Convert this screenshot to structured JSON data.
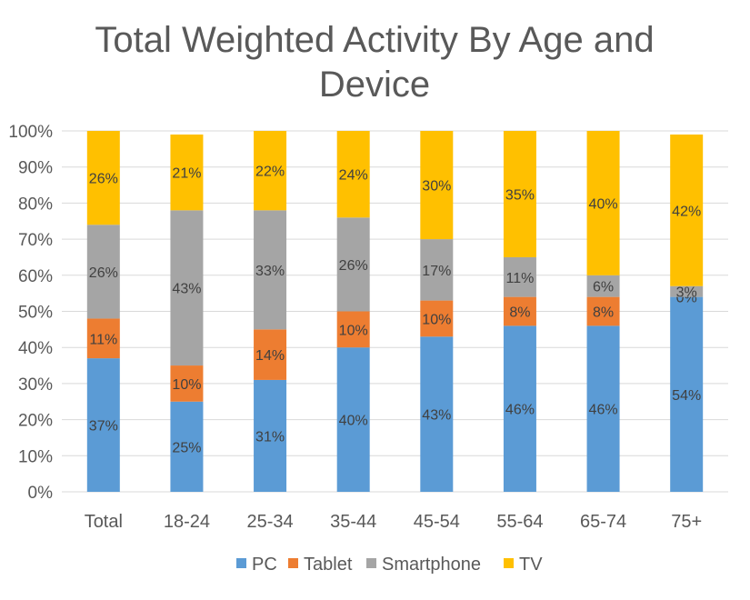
{
  "chart_data": {
    "type": "bar",
    "stacked": "percent",
    "title_lines": [
      "Total Weighted Activity By Age and",
      "Device"
    ],
    "xlabel": "",
    "ylabel": "",
    "categories": [
      "Total",
      "18-24",
      "25-34",
      "35-44",
      "45-54",
      "55-64",
      "65-74",
      "75+"
    ],
    "ylim": [
      0,
      100
    ],
    "yticks": [
      "0%",
      "10%",
      "20%",
      "30%",
      "40%",
      "50%",
      "60%",
      "70%",
      "80%",
      "90%",
      "100%"
    ],
    "grid": true,
    "legend_position": "bottom",
    "series": [
      {
        "name": "PC",
        "color": "#5B9BD5",
        "values": [
          37,
          25,
          31,
          40,
          43,
          46,
          46,
          54
        ],
        "labels": [
          "37%",
          "25%",
          "31%",
          "40%",
          "43%",
          "46%",
          "46%",
          "54%"
        ]
      },
      {
        "name": "Tablet",
        "color": "#ED7D31",
        "values": [
          11,
          10,
          14,
          10,
          10,
          8,
          8,
          0
        ],
        "labels": [
          "11%",
          "10%",
          "14%",
          "10%",
          "10%",
          "8%",
          "8%",
          "0%"
        ]
      },
      {
        "name": "Smartphone",
        "color": "#A5A5A5",
        "values": [
          26,
          43,
          33,
          26,
          17,
          11,
          6,
          3
        ],
        "labels": [
          "26%",
          "43%",
          "33%",
          "26%",
          "17%",
          "11%",
          "6%",
          "3%"
        ]
      },
      {
        "name": "TV",
        "color": "#FFC000",
        "values": [
          26,
          21,
          22,
          24,
          30,
          35,
          40,
          42
        ],
        "labels": [
          "26%",
          "21%",
          "22%",
          "24%",
          "30%",
          "35%",
          "40%",
          "42%"
        ]
      }
    ]
  }
}
